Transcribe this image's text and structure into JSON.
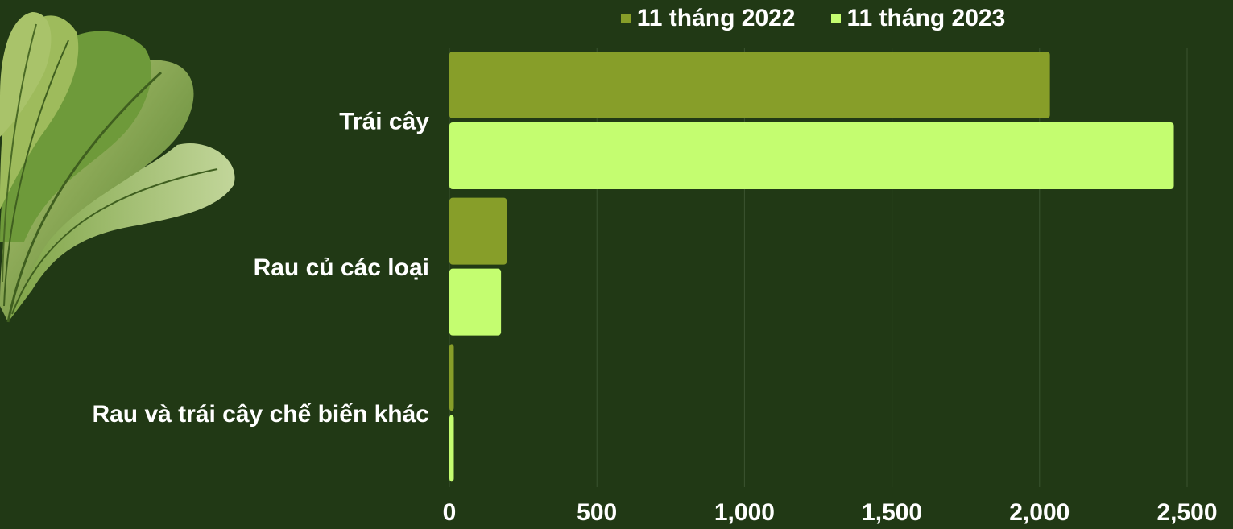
{
  "chart_data": {
    "type": "bar",
    "orientation": "horizontal",
    "title": "",
    "xlabel": "",
    "ylabel": "",
    "categories": [
      "Trái cây",
      "Rau củ các loại",
      "Rau và trái cây chế biến khác"
    ],
    "series": [
      {
        "name": "11 tháng 2022",
        "values": [
          2035,
          195,
          15
        ],
        "color": "#879e29"
      },
      {
        "name": "11 tháng 2023",
        "values": [
          2455,
          175,
          15
        ],
        "color": "#c4fd70"
      }
    ],
    "xlim": [
      0,
      2500
    ],
    "xticks": [
      0,
      500,
      1000,
      1500,
      2000,
      2500
    ],
    "xtick_labels": [
      "0",
      "500",
      "1,000",
      "1,500",
      "2,000",
      "2,500"
    ],
    "grid": "vertical",
    "legend_position": "top"
  },
  "colors": {
    "background": "#213915",
    "text": "#ffffff",
    "grid": "#3b5430"
  },
  "decoration": {
    "icon": "spinach-leaf-illustration"
  }
}
